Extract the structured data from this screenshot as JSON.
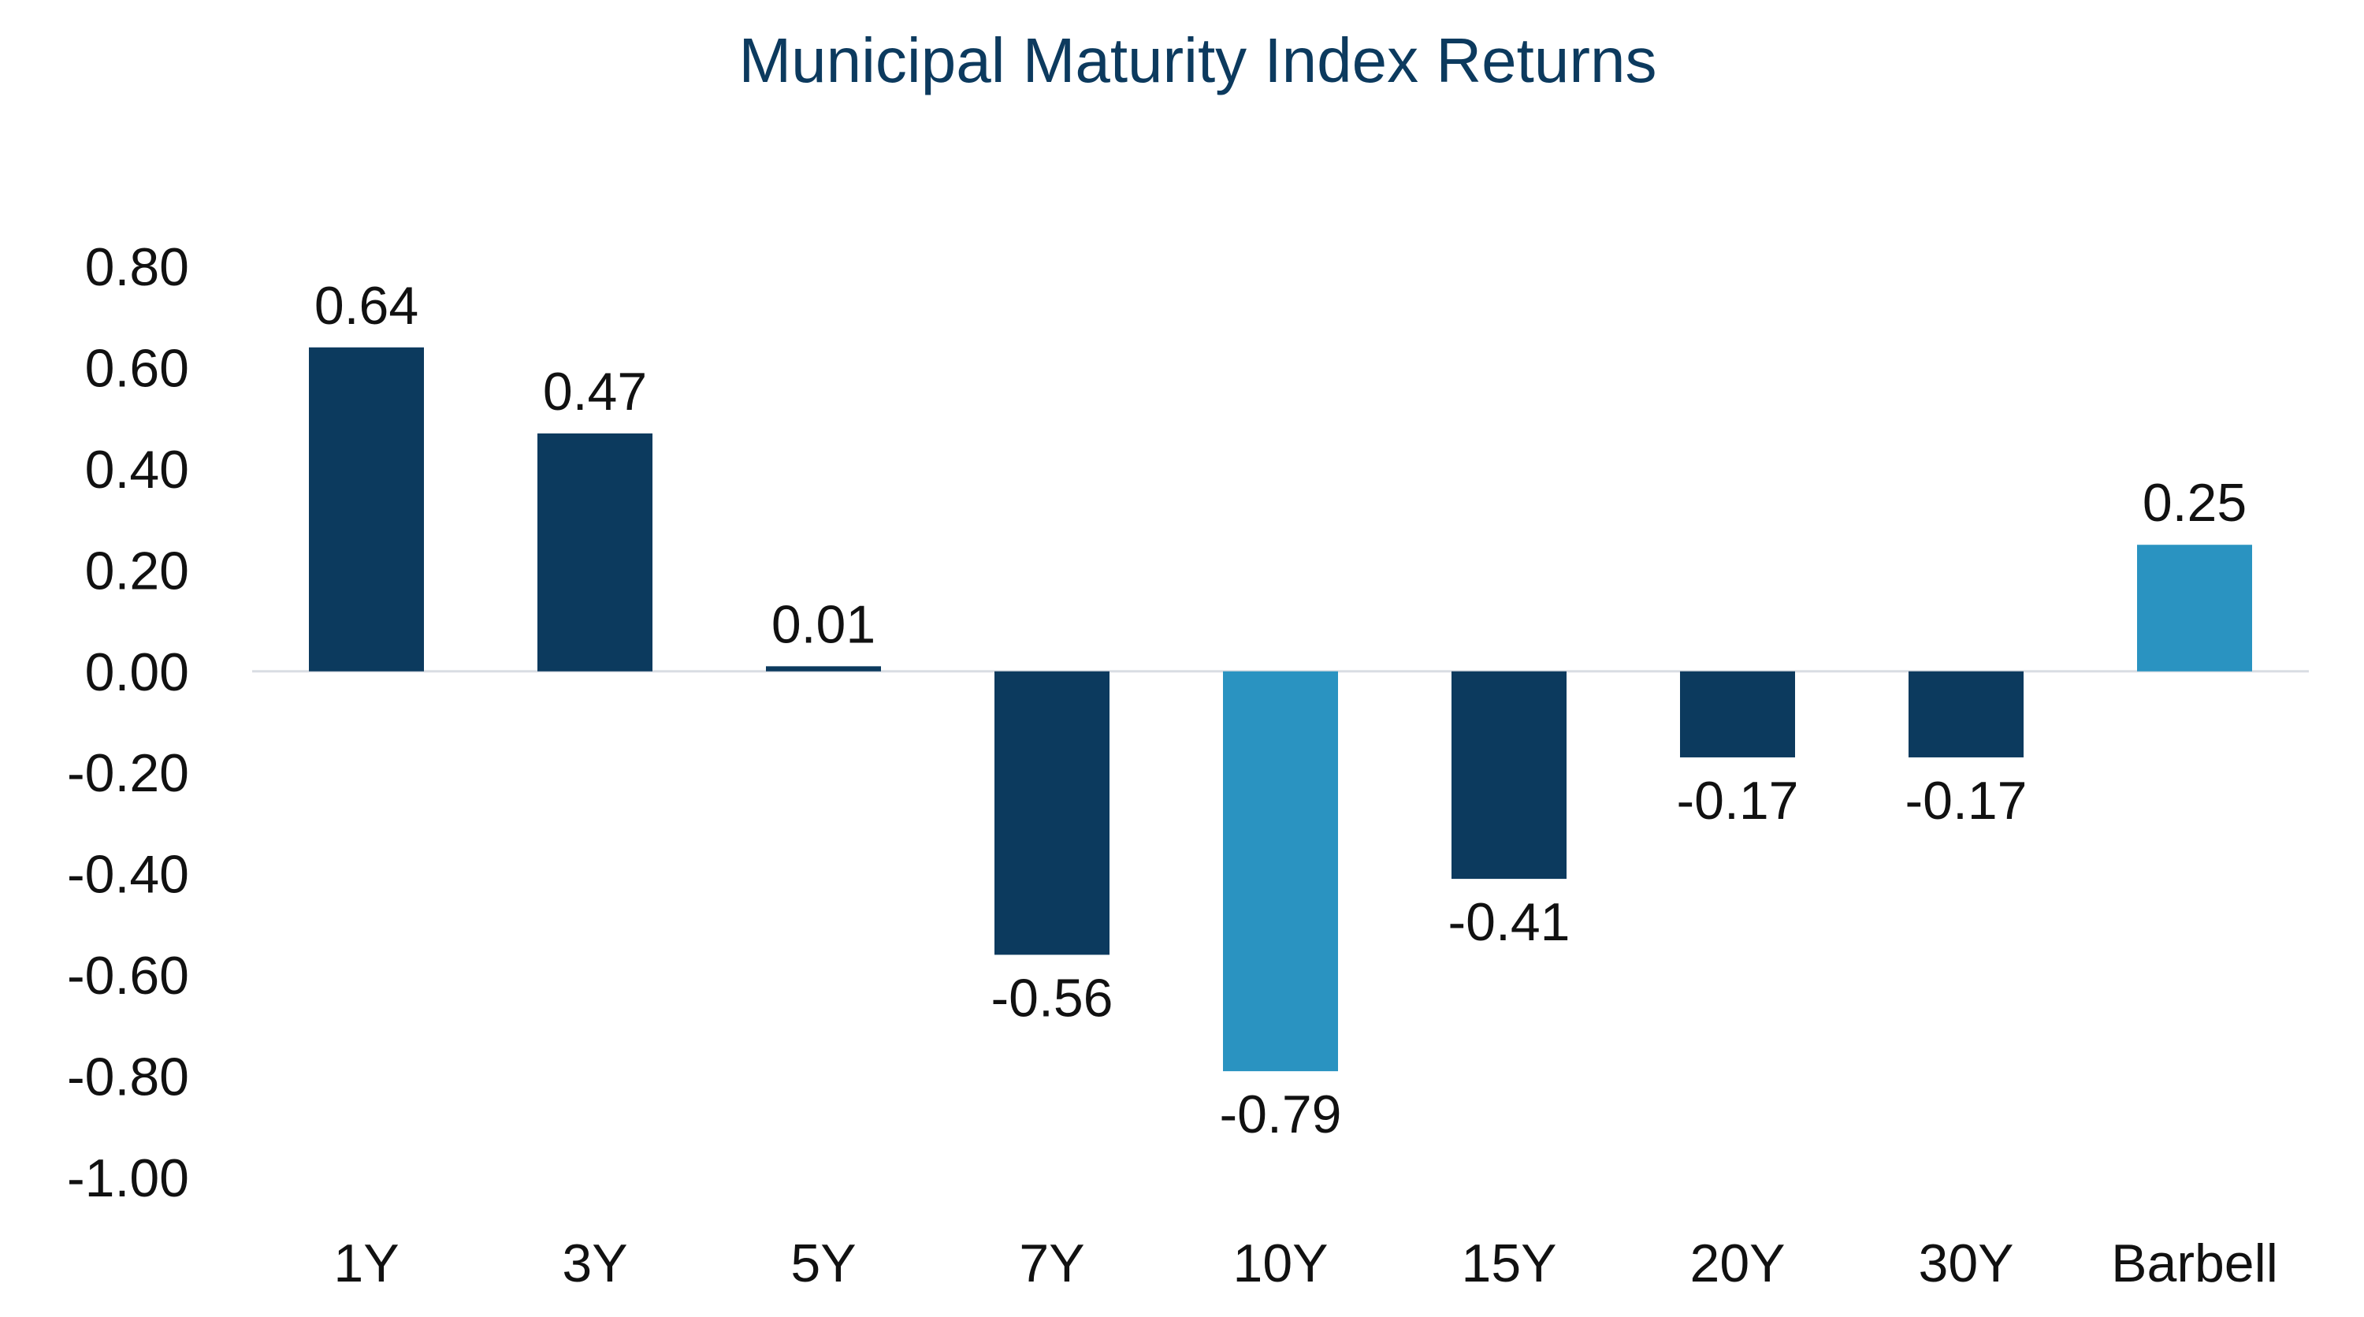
{
  "chart_data": {
    "type": "bar",
    "title": "Municipal Maturity Index Returns",
    "xlabel": "",
    "ylabel": "",
    "categories": [
      "1Y",
      "3Y",
      "5Y",
      "7Y",
      "10Y",
      "15Y",
      "20Y",
      "30Y",
      "Barbell"
    ],
    "values": [
      0.64,
      0.47,
      0.01,
      -0.56,
      -0.79,
      -0.41,
      -0.17,
      -0.17,
      0.25
    ],
    "data_labels": [
      "0.64",
      "0.47",
      "0.01",
      "-0.56",
      "-0.79",
      "-0.41",
      "-0.17",
      "-0.17",
      "0.25"
    ],
    "highlighted": [
      false,
      false,
      false,
      false,
      true,
      false,
      false,
      false,
      true
    ],
    "ylim": [
      -1.0,
      0.8
    ],
    "yticks": [
      0.8,
      0.6,
      0.4,
      0.2,
      0.0,
      -0.2,
      -0.4,
      -0.6,
      -0.8,
      -1.0
    ],
    "ytick_labels": [
      "0.80",
      "0.60",
      "0.40",
      "0.20",
      "0.00",
      "-0.20",
      "-0.40",
      "-0.60",
      "-0.80",
      "-1.00"
    ],
    "grid": false,
    "legend": "none",
    "colors": {
      "bar": "#0c3a5e",
      "highlight": "#2a93c1",
      "title": "#0c3a5e",
      "zero_line": "#d9dde3",
      "text": "#111111"
    }
  }
}
